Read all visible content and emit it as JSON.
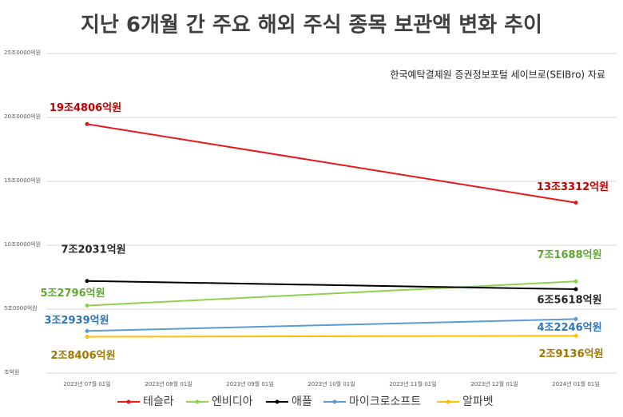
{
  "chart_data": {
    "type": "line",
    "title": "지난 6개월 간 주요 해외 주식 종목 보관액 변화 추이",
    "subtitle": "한국예탁결제원 증권정보포털 세이브로(SEIBro) 자료",
    "categories": [
      "2023년 07월 01일",
      "2023년 08월 01일",
      "2023년 09월 01일",
      "2023년 10월 01일",
      "2023년 11월 01일",
      "2023년 12월 01일",
      "2024년 01월 01일"
    ],
    "ylim": [
      0,
      250000
    ],
    "yticks": [
      {
        "value": 0,
        "label": "조억원"
      },
      {
        "value": 50000,
        "label": "5조0000억원"
      },
      {
        "value": 100000,
        "label": "10조0000억원"
      },
      {
        "value": 150000,
        "label": "15조0000억원"
      },
      {
        "value": 200000,
        "label": "20조0000억원"
      },
      {
        "value": 250000,
        "label": "25조0000억원"
      }
    ],
    "grid": true,
    "legend": "bottom",
    "series": [
      {
        "name": "테슬라",
        "color": "#e8171b",
        "label_color": "#c00000",
        "values": [
          194806,
          null,
          null,
          null,
          null,
          null,
          133312
        ],
        "value_labels": [
          "19조4806억원",
          null,
          null,
          null,
          null,
          null,
          "13조3312억원"
        ]
      },
      {
        "name": "엔비디아",
        "color": "#92d050",
        "label_color": "#5fa832",
        "values": [
          52796,
          null,
          null,
          null,
          null,
          null,
          71688
        ],
        "value_labels": [
          "5조2796억원",
          null,
          null,
          null,
          null,
          null,
          "7조1688억원"
        ]
      },
      {
        "name": "애플",
        "color": "#000000",
        "label_color": "#262626",
        "values": [
          72031,
          null,
          null,
          null,
          null,
          null,
          65618
        ],
        "value_labels": [
          "7조2031억원",
          null,
          null,
          null,
          null,
          null,
          "6조5618억원"
        ]
      },
      {
        "name": "마이크로소프트",
        "color": "#5b9bd5",
        "label_color": "#2e75b6",
        "values": [
          32939,
          null,
          null,
          null,
          null,
          null,
          42246
        ],
        "value_labels": [
          "3조2939억원",
          null,
          null,
          null,
          null,
          null,
          "4조2246억원"
        ]
      },
      {
        "name": "알파벳",
        "color": "#ffc000",
        "label_color": "#a07800",
        "values": [
          28406,
          null,
          null,
          null,
          null,
          null,
          29136
        ],
        "value_labels": [
          "2조8406억원",
          null,
          null,
          null,
          null,
          null,
          "2조9136억원"
        ]
      }
    ]
  }
}
